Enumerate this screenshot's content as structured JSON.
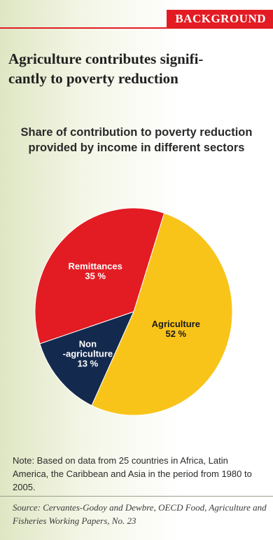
{
  "header": {
    "tag": "BACKGROUND",
    "headline": "Agriculture contributes signifi-\ncantly to poverty reduction"
  },
  "colors": {
    "accent": "#e31b23",
    "agriculture": "#f8c41a",
    "remittances": "#e31b23",
    "non_agriculture": "#13294d"
  },
  "chart_data": {
    "type": "pie",
    "title": "Share of contribution to poverty reduction provided by income in different sectors",
    "slices": [
      {
        "label": "Agriculture",
        "value": 52,
        "value_label": "52 %",
        "color": "#f8c41a",
        "text_color": "#1a1a1a"
      },
      {
        "label": "Non\n-agriculture",
        "value": 13,
        "value_label": "13 %",
        "color": "#13294d",
        "text_color": "#ffffff"
      },
      {
        "label": "Remittances",
        "value": 35,
        "value_label": "35 %",
        "color": "#e31b23",
        "text_color": "#ffffff"
      }
    ]
  },
  "footer": {
    "note": "Note: Based on data from 25 countries in Africa, Latin America, the Caribbean and Asia in the period from 1980 to 2005.",
    "source": "Source: Cervantes-Godoy and Dewbre, OECD Food, Agriculture and Fisheries Working Papers, No. 23"
  }
}
